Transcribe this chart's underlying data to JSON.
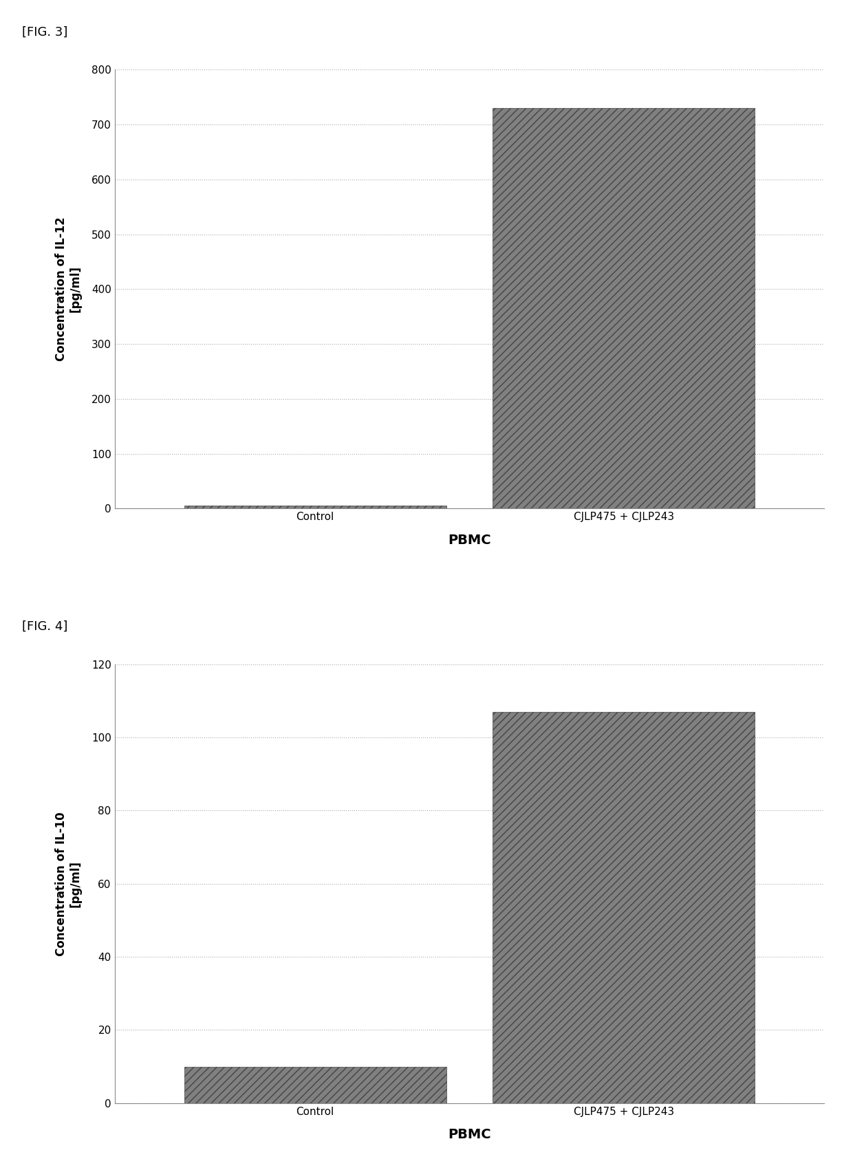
{
  "fig3": {
    "title": "[FIG. 3]",
    "categories": [
      "Control",
      "CJLP475 + CJLP243"
    ],
    "values": [
      5,
      730
    ],
    "ylabel_line1": "Concentration of IL-12",
    "ylabel_line2": "[pg/ml]",
    "xlabel": "PBMC",
    "ylim": [
      0,
      800
    ],
    "yticks": [
      0,
      100,
      200,
      300,
      400,
      500,
      600,
      700,
      800
    ],
    "bar_color": "#808080",
    "bar_hatch": "///",
    "bar_width": 0.85
  },
  "fig4": {
    "title": "[FIG. 4]",
    "categories": [
      "Control",
      "CJLP475 + CJLP243"
    ],
    "values": [
      10,
      107
    ],
    "ylabel_line1": "Concentration of IL-10",
    "ylabel_line2": "[pg/ml]",
    "xlabel": "PBMC",
    "ylim": [
      0,
      120
    ],
    "yticks": [
      0,
      20,
      40,
      60,
      80,
      100,
      120
    ],
    "bar_color": "#808080",
    "bar_hatch": "///",
    "bar_width": 0.85
  },
  "background_color": "#ffffff",
  "grid_color": "#aaaaaa",
  "text_color": "#000000",
  "fig_label_fontsize": 13,
  "axis_label_fontsize": 12,
  "tick_fontsize": 11,
  "xlabel_fontsize": 14
}
